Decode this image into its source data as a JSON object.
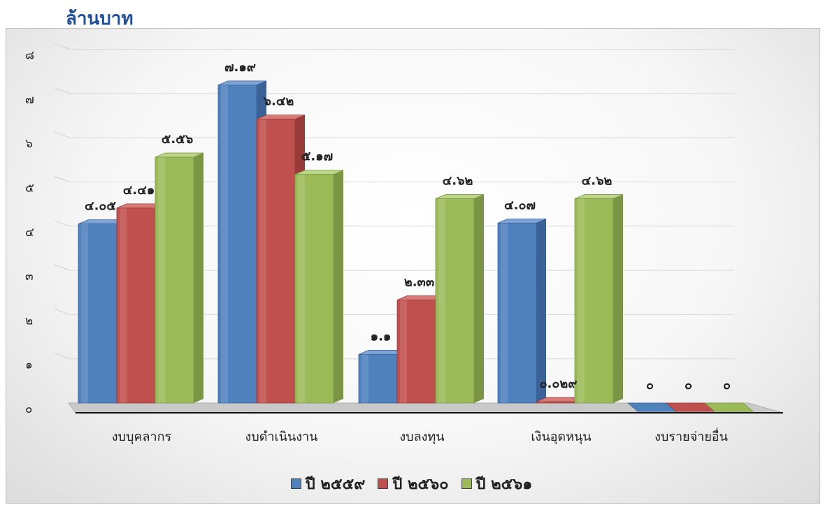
{
  "unit_label": "ล้านบาท",
  "colors": {
    "series": [
      "#4f81bd",
      "#c0504d",
      "#9bbb59"
    ],
    "series_dark": [
      "#3a6296",
      "#983a37",
      "#7a9644"
    ],
    "series_light": [
      "#7ea3d6",
      "#d87b78",
      "#bcd68a"
    ]
  },
  "chart_data": {
    "type": "bar",
    "style": "3d-clustered-column",
    "categories": [
      "งบบุคลากร",
      "งบดำเนินงาน",
      "งบลงทุน",
      "เงินอุดหนุน",
      "งบรายจ่ายอื่น"
    ],
    "series": [
      {
        "name": "ปี ๒๕๕๙",
        "values": [
          4.05,
          7.19,
          1.1,
          4.07,
          0
        ]
      },
      {
        "name": "ปี ๒๕๖๐",
        "values": [
          4.41,
          6.42,
          2.33,
          0.029,
          0
        ]
      },
      {
        "name": "ปี ๒๕๖๑",
        "values": [
          5.56,
          5.17,
          4.62,
          4.62,
          0
        ]
      }
    ],
    "data_labels": [
      [
        "๔.๐๕",
        "๗.๑๙",
        "๑.๑",
        "๔.๐๗",
        "๐"
      ],
      [
        "๔.๔๑",
        "๖.๔๒",
        "๒.๓๓",
        "๐.๐๒๙",
        "๐"
      ],
      [
        "๕.๕๖",
        "๕.๑๗",
        "๔.๖๒",
        "๔.๖๒",
        "๐"
      ]
    ],
    "y_ticks": [
      "๐",
      "๑",
      "๒",
      "๓",
      "๔",
      "๕",
      "๖",
      "๗",
      "๘"
    ],
    "ylim": [
      0,
      8
    ],
    "grid": true,
    "legend_position": "bottom"
  }
}
